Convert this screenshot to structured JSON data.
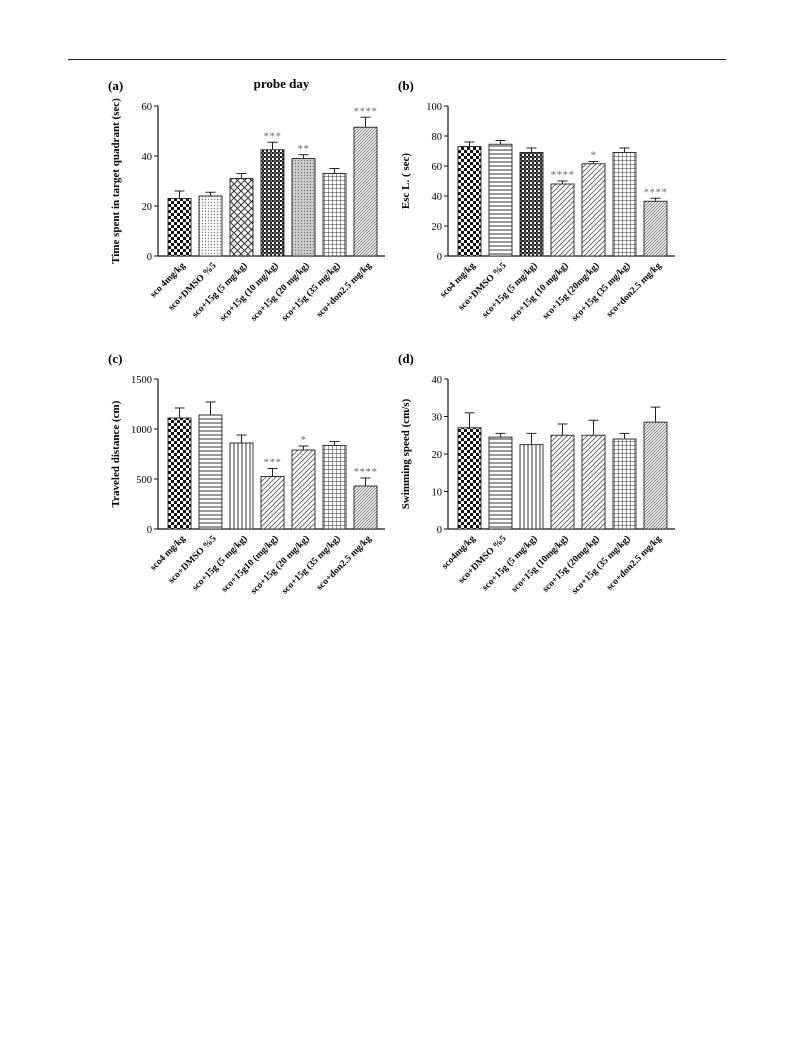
{
  "chart_data": [
    {
      "type": "bar",
      "panel_label": "(a)",
      "title": "probe day",
      "ylabel": "Time spent in target quadrant (sec)",
      "ylim": [
        0,
        60
      ],
      "yticks": [
        0,
        20,
        40,
        60
      ],
      "categories": [
        "sco 4mg/kg",
        "sco+DMSO %5",
        "sco+15g (5 mg/kg)",
        "sco+15g (10 mg/kg)",
        "sco+15g (20 mg/kg)",
        "sco+15g (35 mg/kg)",
        "sco+don2.5 mg/kg"
      ],
      "values": [
        23,
        24,
        31,
        42.5,
        39,
        33,
        51.5
      ],
      "errors": [
        3,
        1.5,
        2,
        3,
        1.5,
        2,
        4
      ],
      "significance": [
        "",
        "",
        "",
        "***",
        "**",
        "",
        "****"
      ],
      "patterns": [
        "checker",
        "dots",
        "diamond",
        "dense-checker",
        "dots-fine",
        "grid",
        "diag-dense"
      ]
    },
    {
      "type": "bar",
      "panel_label": "(b)",
      "title": "",
      "ylabel": "Esc L. ( sec)",
      "ylim": [
        0,
        100
      ],
      "yticks": [
        0,
        20,
        40,
        60,
        80,
        100
      ],
      "categories": [
        "sco4 mg/kg",
        "sco+DMSO %5",
        "sco+15g (5 mg/kg)",
        "sco+15g (10 mg/kg)",
        "sco+15g (20mg/kg)",
        "sco+15g (35 mg/kg)",
        "sco+don2.5 mg/kg"
      ],
      "values": [
        73,
        74.5,
        69,
        48,
        61.5,
        69,
        36.5
      ],
      "errors": [
        3,
        2.5,
        3,
        2,
        1.5,
        3,
        2
      ],
      "significance": [
        "",
        "",
        "",
        "****",
        "*",
        "",
        "****"
      ],
      "patterns": [
        "checker",
        "hlines",
        "dense-checker",
        "diag",
        "diag",
        "grid",
        "diag-dense"
      ]
    },
    {
      "type": "bar",
      "panel_label": "(c)",
      "title": "",
      "ylabel": "Traveled distance (cm)",
      "ylim": [
        0,
        1500
      ],
      "yticks": [
        0,
        500,
        1000,
        1500
      ],
      "categories": [
        "sco4 mg/kg",
        "sco+DMSO %5",
        "sco+15g (5 mg/kg)",
        "sco+15g10 (mg/kg)",
        "sco+15g (20 mg/kg)",
        "sco+15g (35 mg/kg)",
        "sco+don2.5 mg/kg"
      ],
      "values": [
        1110,
        1140,
        860,
        525,
        790,
        835,
        430
      ],
      "errors": [
        100,
        130,
        80,
        80,
        40,
        40,
        80
      ],
      "significance": [
        "",
        "",
        "",
        "***",
        "*",
        "",
        "****"
      ],
      "patterns": [
        "checker",
        "hlines",
        "vlines",
        "diag",
        "diag",
        "grid",
        "diag-dense"
      ]
    },
    {
      "type": "bar",
      "panel_label": "(d)",
      "title": "",
      "ylabel": "Swimming speed (cm/s)",
      "ylim": [
        0,
        40
      ],
      "yticks": [
        0,
        10,
        20,
        30,
        40
      ],
      "categories": [
        "sco4mg/kg",
        "sco+DMSO %5",
        "sco+15g (5 mg/kg)",
        "sco+15g (10mg/kg)",
        "sco+15g (20mg/kg)",
        "sco+15g (35 mg/kg)",
        "sco+don2.5 mg/kg"
      ],
      "values": [
        27,
        24.5,
        22.5,
        25,
        25,
        24,
        28.5
      ],
      "errors": [
        4,
        1,
        3,
        3,
        4,
        1.5,
        4
      ],
      "significance": [
        "",
        "",
        "",
        "",
        "",
        "",
        ""
      ],
      "patterns": [
        "checker",
        "hlines",
        "vlines",
        "diag",
        "diag",
        "grid",
        "diag-dense"
      ]
    }
  ]
}
